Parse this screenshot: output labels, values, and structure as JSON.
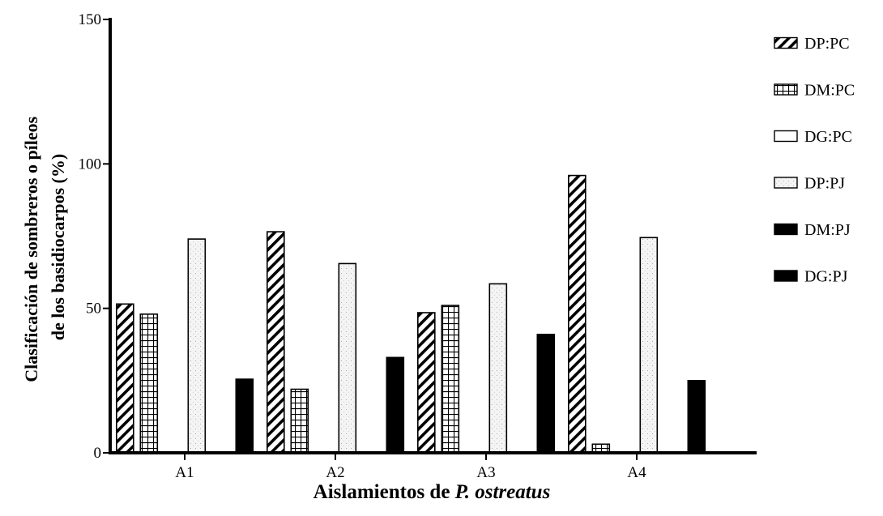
{
  "chart_data": {
    "type": "bar",
    "title": "",
    "categories": [
      "A1",
      "A2",
      "A3",
      "A4"
    ],
    "series": [
      {
        "name": "DP:PC",
        "pattern": "diagonal-hatch",
        "values": [
          51.5,
          76.5,
          48.5,
          96
        ]
      },
      {
        "name": "DM:PC",
        "pattern": "grid",
        "values": [
          48,
          22,
          51,
          3
        ]
      },
      {
        "name": "DG:PC",
        "pattern": "white",
        "values": [
          0,
          0,
          0,
          0
        ]
      },
      {
        "name": "DP:PJ",
        "pattern": "light-stipple",
        "values": [
          74,
          65.5,
          58.5,
          74.5
        ]
      },
      {
        "name": "DM:PJ",
        "pattern": "black",
        "values": [
          0,
          0,
          0,
          0
        ]
      },
      {
        "name": "DG:PJ",
        "pattern": "black",
        "values": [
          25.5,
          33,
          41,
          25
        ]
      }
    ],
    "ylabel_line1": "Clasificación de sombreros o píleos",
    "ylabel_line2": "de los basidiocarpos (%)",
    "xlabel_prefix": "Aislamientos de ",
    "xlabel_italic": "P. ostreatus",
    "yticks": [
      0,
      50,
      100,
      150
    ],
    "ylim": [
      0,
      150
    ],
    "legend_position": "right",
    "grid": false,
    "colors": {
      "ink": "#000000",
      "stipple": "#f2f2f2",
      "background": "#ffffff"
    }
  }
}
